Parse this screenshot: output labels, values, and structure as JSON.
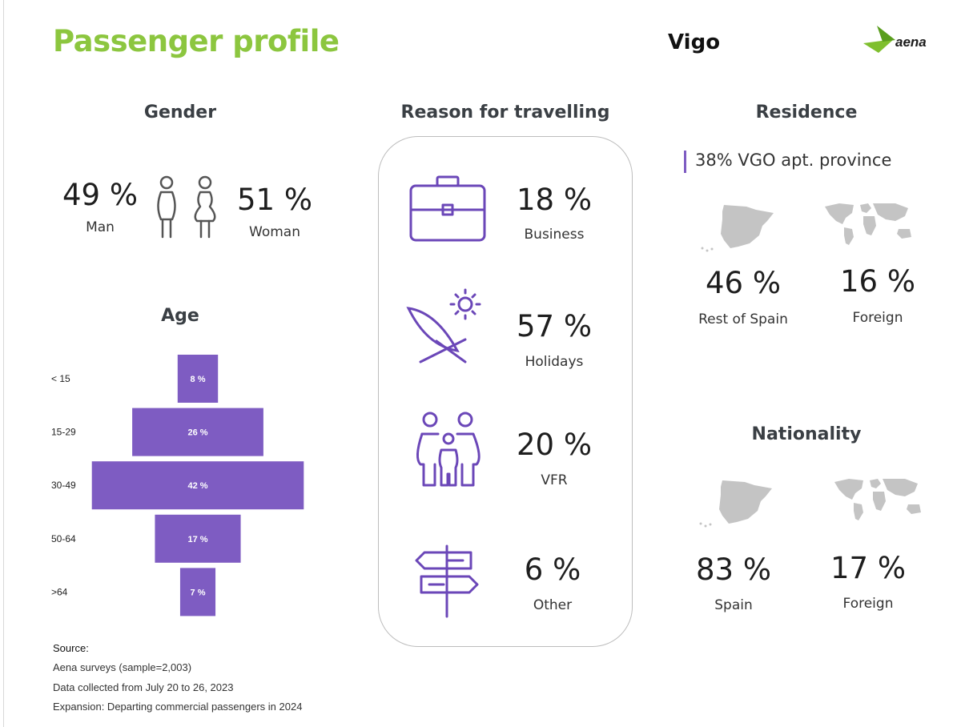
{
  "header": {
    "title": "Passenger profile",
    "city": "Vigo",
    "logo_text": "aena"
  },
  "colors": {
    "accent_green": "#8cc63f",
    "bar_purple": "#7e5cc2",
    "icon_purple": "#6b47b8",
    "map_grey": "#c4c4c4",
    "person_grey": "#555555"
  },
  "gender": {
    "title": "Gender",
    "man": {
      "value": "49 %",
      "label": "Man"
    },
    "woman": {
      "value": "51 %",
      "label": "Woman"
    },
    "icon": "man-woman-icon"
  },
  "age": {
    "title": "Age",
    "rows": [
      {
        "label": "< 15",
        "value": "8 %"
      },
      {
        "label": "15-29",
        "value": "26 %"
      },
      {
        "label": "30-49",
        "value": "42 %"
      },
      {
        "label": "50-64",
        "value": "17 %"
      },
      {
        "label": ">64",
        "value": "7 %"
      }
    ]
  },
  "reason": {
    "title": "Reason for travelling",
    "items": [
      {
        "value": "18 %",
        "label": "Business",
        "icon": "briefcase-icon"
      },
      {
        "value": "57 %",
        "label": "Holidays",
        "icon": "beach-umbrella-sun-icon"
      },
      {
        "value": "20 %",
        "label": "VFR",
        "icon": "family-icon"
      },
      {
        "value": "6 %",
        "label": "Other",
        "icon": "signpost-icon"
      }
    ]
  },
  "residence": {
    "title": "Residence",
    "note": "38% VGO apt. province",
    "items": [
      {
        "value": "46 %",
        "label": "Rest of Spain",
        "icon": "spain-map-icon"
      },
      {
        "value": "16 %",
        "label": "Foreign",
        "icon": "world-map-icon"
      }
    ]
  },
  "nationality": {
    "title": "Nationality",
    "items": [
      {
        "value": "83 %",
        "label": "Spain",
        "icon": "spain-map-icon"
      },
      {
        "value": "17 %",
        "label": "Foreign",
        "icon": "world-map-icon"
      }
    ]
  },
  "source": {
    "title": "Source:",
    "lines": [
      "Aena surveys (sample=2,003)",
      "Data collected from July 20 to 26, 2023",
      "Expansion: Departing commercial passengers in 2024"
    ]
  },
  "chart_data": {
    "type": "bar",
    "title": "Age",
    "categories": [
      "< 15",
      "15-29",
      "30-49",
      "50-64",
      ">64"
    ],
    "values": [
      8,
      26,
      42,
      17,
      7
    ],
    "value_unit": "%",
    "orientation": "horizontal-centered",
    "grid": false
  }
}
